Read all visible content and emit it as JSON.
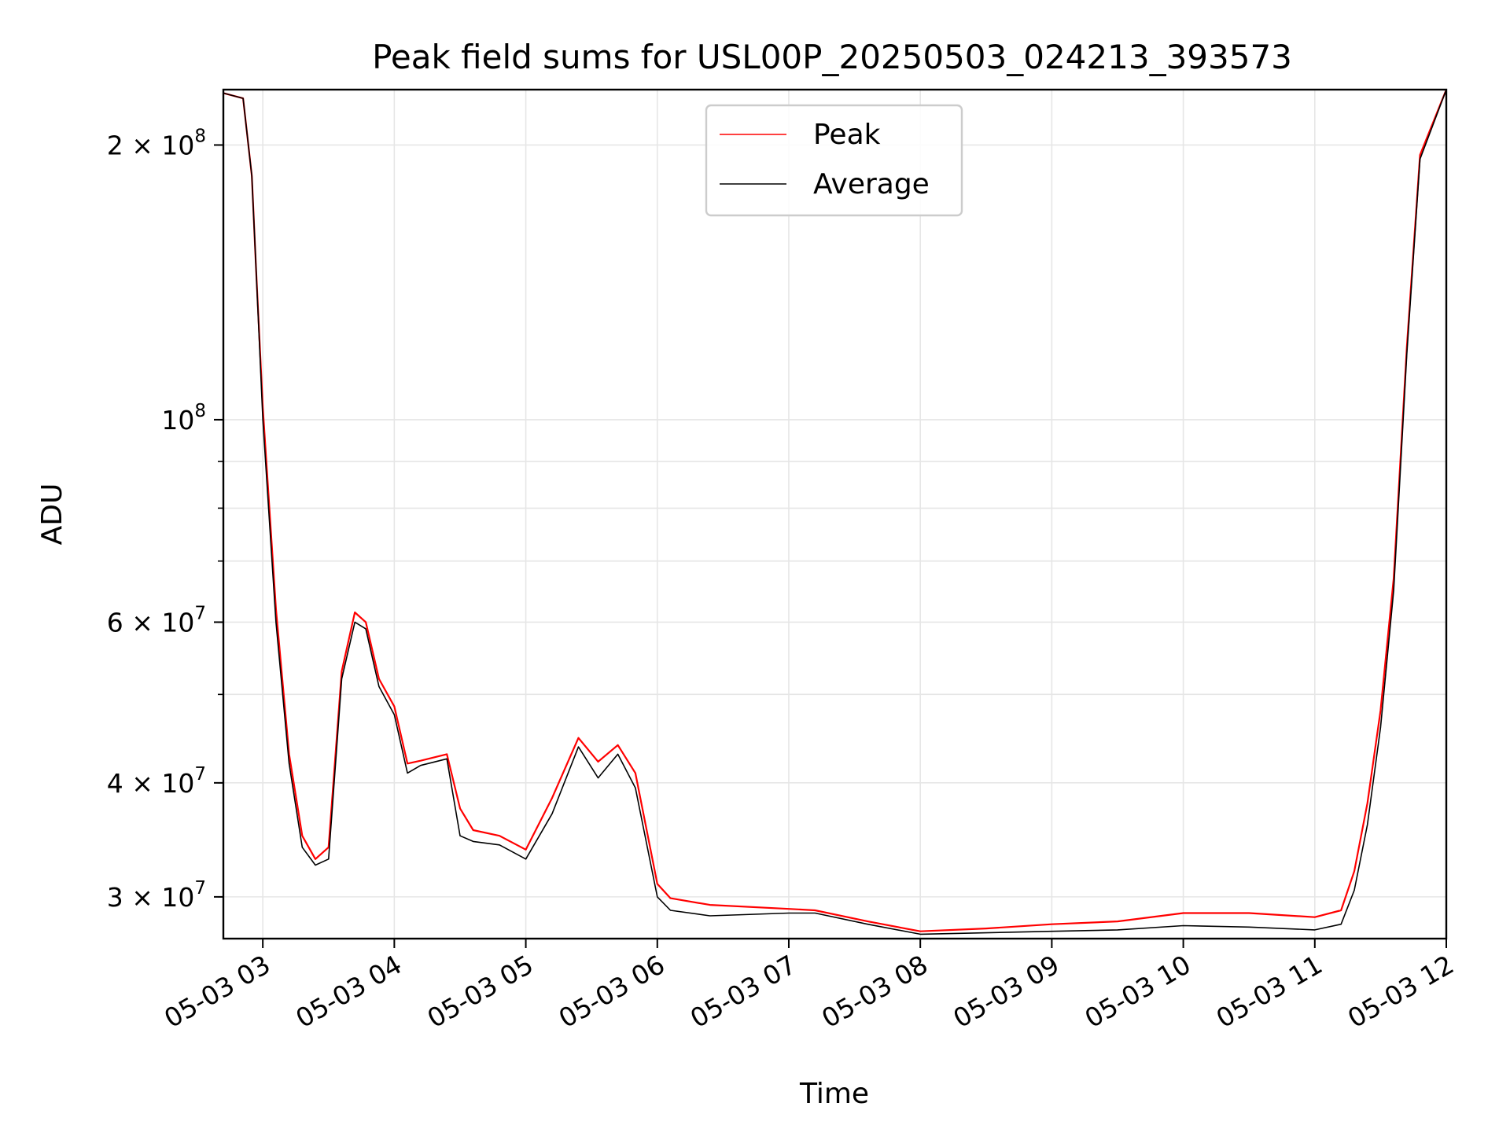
{
  "chart_data": {
    "type": "line",
    "title": "Peak field sums for USL00P_20250503_024213_393573",
    "xlabel": "Time",
    "ylabel": "ADU",
    "yscale": "log",
    "ylim": [
      27000000,
      230000000
    ],
    "xlim": [
      "2025-05-03 02:42",
      "2025-05-03 12:00"
    ],
    "grid": true,
    "legend_position": "top-center",
    "x_ticks": [
      "2025-05-03 03:00",
      "2025-05-03 04:00",
      "2025-05-03 05:00",
      "2025-05-03 06:00",
      "2025-05-03 07:00",
      "2025-05-03 08:00",
      "2025-05-03 09:00",
      "2025-05-03 10:00",
      "2025-05-03 11:00",
      "2025-05-03 12:00"
    ],
    "x_tick_labels": [
      "05-03 03",
      "05-03 04",
      "05-03 05",
      "05-03 06",
      "05-03 07",
      "05-03 08",
      "05-03 09",
      "05-03 10",
      "05-03 11",
      "05-03 12"
    ],
    "y_ticks": [
      {
        "value": 30000000,
        "mantissa": "3",
        "exponent": "7"
      },
      {
        "value": 40000000,
        "mantissa": "4",
        "exponent": "7"
      },
      {
        "value": 60000000,
        "mantissa": "6",
        "exponent": "7"
      },
      {
        "value": 100000000,
        "mantissa": "",
        "exponent": "8"
      },
      {
        "value": 200000000,
        "mantissa": "2",
        "exponent": "8"
      }
    ],
    "series": [
      {
        "name": "Peak",
        "color": "#ff0000",
        "x": [
          "2025-05-03 02:42",
          "2025-05-03 02:51",
          "2025-05-03 02:55",
          "2025-05-03 02:57",
          "2025-05-03 03:00",
          "2025-05-03 03:06",
          "2025-05-03 03:12",
          "2025-05-03 03:18",
          "2025-05-03 03:24",
          "2025-05-03 03:30",
          "2025-05-03 03:36",
          "2025-05-03 03:42",
          "2025-05-03 03:47",
          "2025-05-03 03:53",
          "2025-05-03 04:00",
          "2025-05-03 04:06",
          "2025-05-03 04:12",
          "2025-05-03 04:24",
          "2025-05-03 04:30",
          "2025-05-03 04:36",
          "2025-05-03 04:48",
          "2025-05-03 05:00",
          "2025-05-03 05:12",
          "2025-05-03 05:24",
          "2025-05-03 05:33",
          "2025-05-03 05:42",
          "2025-05-03 05:50",
          "2025-05-03 06:00",
          "2025-05-03 06:06",
          "2025-05-03 06:24",
          "2025-05-03 07:00",
          "2025-05-03 07:12",
          "2025-05-03 07:36",
          "2025-05-03 08:00",
          "2025-05-03 08:30",
          "2025-05-03 09:00",
          "2025-05-03 09:30",
          "2025-05-03 10:00",
          "2025-05-03 10:30",
          "2025-05-03 11:00",
          "2025-05-03 11:12",
          "2025-05-03 11:18",
          "2025-05-03 11:24",
          "2025-05-03 11:30",
          "2025-05-03 11:36",
          "2025-05-03 11:42",
          "2025-05-03 11:48",
          "2025-05-03 12:00"
        ],
        "values": [
          228000000,
          225000000,
          185000000,
          145000000,
          103000000,
          62000000,
          43000000,
          35000000,
          33000000,
          34000000,
          53000000,
          61500000,
          60000000,
          52000000,
          48500000,
          42000000,
          42300000,
          43000000,
          37500000,
          35500000,
          35000000,
          33800000,
          38500000,
          44800000,
          42200000,
          44000000,
          41000000,
          31000000,
          29900000,
          29400000,
          29100000,
          29000000,
          28200000,
          27500000,
          27700000,
          28000000,
          28200000,
          28800000,
          28800000,
          28500000,
          29000000,
          32000000,
          38000000,
          48000000,
          67000000,
          120000000,
          195000000,
          230000000
        ]
      },
      {
        "name": "Average",
        "color": "#000000",
        "x": [
          "2025-05-03 02:42",
          "2025-05-03 02:51",
          "2025-05-03 02:55",
          "2025-05-03 02:57",
          "2025-05-03 03:00",
          "2025-05-03 03:06",
          "2025-05-03 03:12",
          "2025-05-03 03:18",
          "2025-05-03 03:24",
          "2025-05-03 03:30",
          "2025-05-03 03:36",
          "2025-05-03 03:42",
          "2025-05-03 03:47",
          "2025-05-03 03:53",
          "2025-05-03 04:00",
          "2025-05-03 04:06",
          "2025-05-03 04:12",
          "2025-05-03 04:24",
          "2025-05-03 04:30",
          "2025-05-03 04:36",
          "2025-05-03 04:48",
          "2025-05-03 05:00",
          "2025-05-03 05:12",
          "2025-05-03 05:24",
          "2025-05-03 05:33",
          "2025-05-03 05:42",
          "2025-05-03 05:50",
          "2025-05-03 06:00",
          "2025-05-03 06:06",
          "2025-05-03 06:24",
          "2025-05-03 07:00",
          "2025-05-03 07:12",
          "2025-05-03 07:36",
          "2025-05-03 08:00",
          "2025-05-03 08:30",
          "2025-05-03 09:00",
          "2025-05-03 09:30",
          "2025-05-03 10:00",
          "2025-05-03 10:30",
          "2025-05-03 11:00",
          "2025-05-03 11:12",
          "2025-05-03 11:18",
          "2025-05-03 11:24",
          "2025-05-03 11:30",
          "2025-05-03 11:36",
          "2025-05-03 11:42",
          "2025-05-03 11:48",
          "2025-05-03 12:00"
        ],
        "values": [
          228000000,
          225000000,
          185000000,
          145000000,
          100000000,
          60000000,
          42000000,
          34000000,
          32500000,
          33000000,
          52000000,
          60000000,
          59000000,
          51000000,
          47500000,
          41000000,
          41800000,
          42500000,
          35000000,
          34500000,
          34200000,
          33000000,
          37000000,
          43800000,
          40500000,
          43000000,
          39500000,
          30000000,
          29000000,
          28600000,
          28800000,
          28800000,
          28000000,
          27300000,
          27400000,
          27500000,
          27600000,
          27900000,
          27800000,
          27600000,
          28000000,
          30500000,
          36000000,
          46000000,
          65000000,
          118000000,
          193000000,
          230000000
        ]
      }
    ]
  }
}
